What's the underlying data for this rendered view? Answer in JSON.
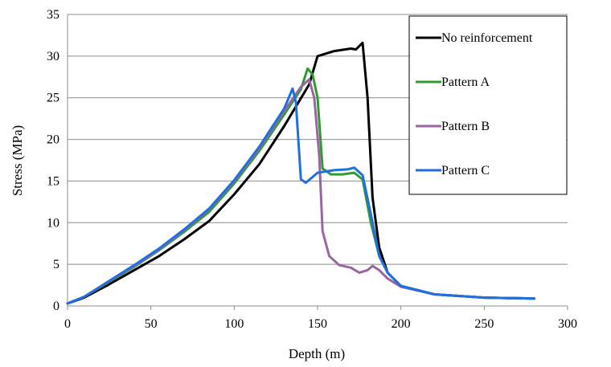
{
  "chart_data": {
    "type": "line",
    "title": "",
    "xlabel": "Depth (m)",
    "ylabel": "Stress (MPa)",
    "xlim": [
      0,
      300
    ],
    "ylim": [
      0,
      35
    ],
    "xticks": [
      0,
      50,
      100,
      150,
      200,
      250,
      300
    ],
    "yticks": [
      0,
      5,
      10,
      15,
      20,
      25,
      30,
      35
    ],
    "grid": "horizontal",
    "legend_position": "top-right",
    "series": [
      {
        "name": "No reinforcement",
        "color": "#000000",
        "points": [
          [
            0,
            0.3
          ],
          [
            10,
            1.0
          ],
          [
            25,
            2.6
          ],
          [
            40,
            4.3
          ],
          [
            55,
            6.0
          ],
          [
            70,
            8.0
          ],
          [
            85,
            10.2
          ],
          [
            100,
            13.4
          ],
          [
            115,
            17.0
          ],
          [
            130,
            21.6
          ],
          [
            145,
            26.6
          ],
          [
            150,
            30.0
          ],
          [
            160,
            30.6
          ],
          [
            170,
            30.9
          ],
          [
            173,
            30.8
          ],
          [
            177,
            31.6
          ],
          [
            180,
            25.0
          ],
          [
            183,
            13.0
          ],
          [
            187,
            7.0
          ],
          [
            192,
            4.0
          ],
          [
            200,
            2.4
          ],
          [
            220,
            1.4
          ],
          [
            250,
            1.0
          ],
          [
            280,
            0.9
          ]
        ]
      },
      {
        "name": "Pattern A",
        "color": "#339933",
        "points": [
          [
            0,
            0.3
          ],
          [
            10,
            1.1
          ],
          [
            25,
            2.9
          ],
          [
            40,
            4.7
          ],
          [
            55,
            6.7
          ],
          [
            70,
            8.9
          ],
          [
            85,
            11.3
          ],
          [
            100,
            14.7
          ],
          [
            115,
            18.6
          ],
          [
            130,
            23.0
          ],
          [
            140,
            26.0
          ],
          [
            144,
            28.5
          ],
          [
            147,
            27.8
          ],
          [
            150,
            25.0
          ],
          [
            153,
            16.5
          ],
          [
            158,
            15.8
          ],
          [
            165,
            15.8
          ],
          [
            172,
            16.0
          ],
          [
            177,
            15.2
          ],
          [
            182,
            10.0
          ],
          [
            187,
            6.0
          ],
          [
            192,
            4.0
          ],
          [
            200,
            2.4
          ],
          [
            220,
            1.4
          ],
          [
            250,
            1.0
          ],
          [
            280,
            0.9
          ]
        ]
      },
      {
        "name": "Pattern B",
        "color": "#9966A0",
        "points": [
          [
            0,
            0.3
          ],
          [
            10,
            1.1
          ],
          [
            25,
            3.0
          ],
          [
            40,
            4.8
          ],
          [
            55,
            6.8
          ],
          [
            70,
            9.1
          ],
          [
            85,
            11.6
          ],
          [
            100,
            15.0
          ],
          [
            115,
            18.9
          ],
          [
            130,
            23.4
          ],
          [
            140,
            26.3
          ],
          [
            145,
            27.2
          ],
          [
            148,
            25.0
          ],
          [
            151,
            18.0
          ],
          [
            153,
            9.0
          ],
          [
            157,
            6.0
          ],
          [
            163,
            4.9
          ],
          [
            170,
            4.6
          ],
          [
            175,
            4.0
          ],
          [
            180,
            4.3
          ],
          [
            183,
            4.8
          ],
          [
            187,
            4.3
          ],
          [
            192,
            3.3
          ],
          [
            200,
            2.3
          ],
          [
            220,
            1.4
          ],
          [
            250,
            1.0
          ],
          [
            280,
            0.9
          ]
        ]
      },
      {
        "name": "Pattern C",
        "color": "#1F6FE0",
        "points": [
          [
            0,
            0.3
          ],
          [
            10,
            1.1
          ],
          [
            25,
            3.0
          ],
          [
            40,
            4.9
          ],
          [
            55,
            6.9
          ],
          [
            70,
            9.2
          ],
          [
            85,
            11.7
          ],
          [
            100,
            15.1
          ],
          [
            115,
            19.1
          ],
          [
            130,
            23.7
          ],
          [
            135,
            26.1
          ],
          [
            137,
            24.5
          ],
          [
            140,
            15.2
          ],
          [
            143,
            14.8
          ],
          [
            150,
            16.0
          ],
          [
            160,
            16.3
          ],
          [
            168,
            16.4
          ],
          [
            172,
            16.6
          ],
          [
            177,
            15.7
          ],
          [
            182,
            11.0
          ],
          [
            187,
            6.0
          ],
          [
            192,
            4.0
          ],
          [
            200,
            2.4
          ],
          [
            220,
            1.4
          ],
          [
            250,
            1.0
          ],
          [
            280,
            0.9
          ]
        ]
      }
    ]
  }
}
